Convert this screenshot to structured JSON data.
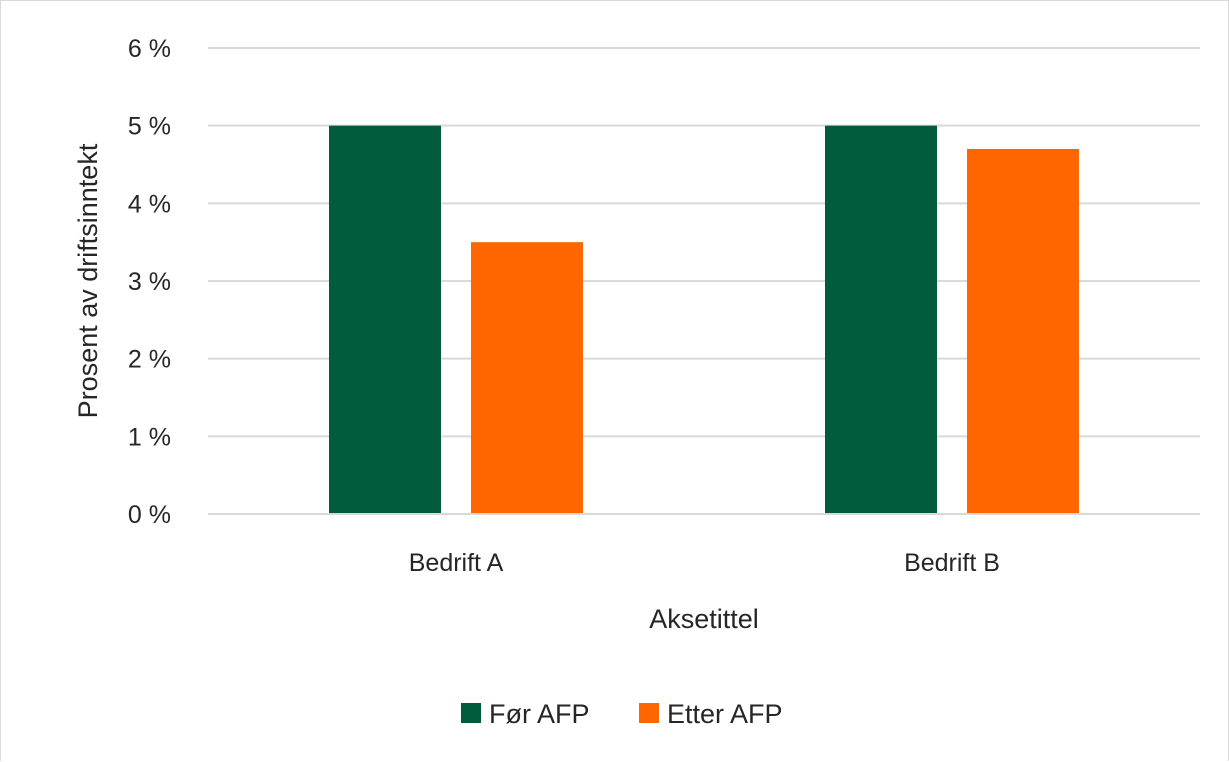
{
  "chart_data": {
    "type": "bar",
    "categories": [
      "Bedrift A",
      "Bedrift B"
    ],
    "series": [
      {
        "name": "Før AFP",
        "values": [
          5.0,
          5.0
        ],
        "color": "#005c3c"
      },
      {
        "name": "Etter AFP",
        "values": [
          3.5,
          4.7
        ],
        "color": "#ff6600"
      }
    ],
    "xlabel": "Aksetittel",
    "ylabel": "Prosent av driftsinntekt",
    "ylim": [
      0,
      6
    ],
    "yticks": [
      "0 %",
      "1 %",
      "2 %",
      "3 %",
      "4 %",
      "5 %",
      "6 %"
    ],
    "grid": true,
    "legend_position": "bottom",
    "gridline_color": "#d9d9d9",
    "text_color": "#262626"
  }
}
